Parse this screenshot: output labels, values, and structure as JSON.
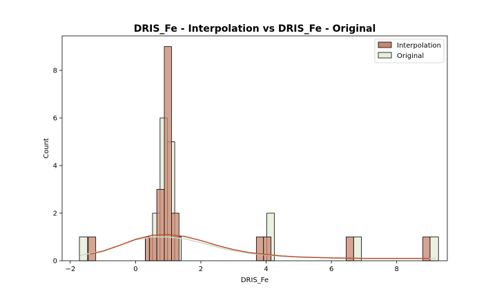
{
  "chart_data": {
    "type": "histogram",
    "title": "DRIS_Fe - Interpolation vs DRIS_Fe - Original",
    "xlabel": "DRIS_Fe",
    "ylabel": "Count",
    "xlim": [
      -2.25,
      9.55
    ],
    "ylim": [
      0,
      9.45
    ],
    "xticks": [
      -2,
      0,
      2,
      4,
      6,
      8
    ],
    "yticks": [
      0,
      2,
      4,
      6,
      8
    ],
    "legend_position": "top-right",
    "grid": false,
    "series": [
      {
        "name": "Interpolation",
        "color": "#c9846e",
        "kde_color": "#b5532f",
        "bins": [
          {
            "x0": -1.45,
            "x1": -1.22,
            "count": 1
          },
          {
            "x0": 0.3,
            "x1": 0.43,
            "count": 1
          },
          {
            "x0": 0.43,
            "x1": 0.65,
            "count": 1
          },
          {
            "x0": 0.65,
            "x1": 0.88,
            "count": 3
          },
          {
            "x0": 0.88,
            "x1": 1.1,
            "count": 9
          },
          {
            "x0": 1.1,
            "x1": 1.33,
            "count": 2
          },
          {
            "x0": 3.7,
            "x1": 3.92,
            "count": 1
          },
          {
            "x0": 3.92,
            "x1": 4.15,
            "count": 1
          },
          {
            "x0": 6.45,
            "x1": 6.68,
            "count": 1
          },
          {
            "x0": 8.8,
            "x1": 9.02,
            "count": 1
          }
        ],
        "kde": [
          [
            -1.4,
            0.28
          ],
          [
            -1.0,
            0.4
          ],
          [
            -0.5,
            0.64
          ],
          [
            0.0,
            0.9
          ],
          [
            0.5,
            1.07
          ],
          [
            1.0,
            1.1
          ],
          [
            1.5,
            1.02
          ],
          [
            2.0,
            0.85
          ],
          [
            2.5,
            0.64
          ],
          [
            3.0,
            0.47
          ],
          [
            3.5,
            0.34
          ],
          [
            4.0,
            0.26
          ],
          [
            4.5,
            0.2
          ],
          [
            5.0,
            0.16
          ],
          [
            5.5,
            0.14
          ],
          [
            6.0,
            0.12
          ],
          [
            6.5,
            0.11
          ],
          [
            7.0,
            0.1
          ],
          [
            7.5,
            0.1
          ],
          [
            8.0,
            0.1
          ],
          [
            8.5,
            0.1
          ],
          [
            9.0,
            0.1
          ]
        ]
      },
      {
        "name": "Original",
        "color": "#e6efdc",
        "kde_color": "#cdd8c4",
        "bins": [
          {
            "x0": -1.72,
            "x1": -1.47,
            "count": 1
          },
          {
            "x0": 0.3,
            "x1": 0.52,
            "count": 1
          },
          {
            "x0": 0.52,
            "x1": 0.75,
            "count": 2
          },
          {
            "x0": 0.75,
            "x1": 0.98,
            "count": 6
          },
          {
            "x0": 0.98,
            "x1": 1.2,
            "count": 5
          },
          {
            "x0": 1.2,
            "x1": 1.4,
            "count": 1
          },
          {
            "x0": 4.02,
            "x1": 4.25,
            "count": 2
          },
          {
            "x0": 6.68,
            "x1": 6.92,
            "count": 1
          },
          {
            "x0": 9.02,
            "x1": 9.28,
            "count": 1
          }
        ],
        "kde": [
          [
            -1.7,
            0.22
          ],
          [
            -1.0,
            0.42
          ],
          [
            -0.5,
            0.65
          ],
          [
            0.0,
            0.88
          ],
          [
            0.5,
            1.0
          ],
          [
            1.0,
            1.0
          ],
          [
            1.5,
            0.92
          ],
          [
            2.0,
            0.76
          ],
          [
            2.5,
            0.57
          ],
          [
            3.0,
            0.42
          ],
          [
            3.5,
            0.31
          ],
          [
            4.0,
            0.24
          ],
          [
            4.5,
            0.19
          ],
          [
            5.0,
            0.16
          ],
          [
            5.5,
            0.14
          ],
          [
            6.0,
            0.12
          ],
          [
            6.5,
            0.11
          ],
          [
            7.0,
            0.1
          ],
          [
            7.5,
            0.1
          ],
          [
            8.0,
            0.1
          ],
          [
            8.5,
            0.1
          ],
          [
            9.2,
            0.1
          ]
        ]
      }
    ]
  }
}
